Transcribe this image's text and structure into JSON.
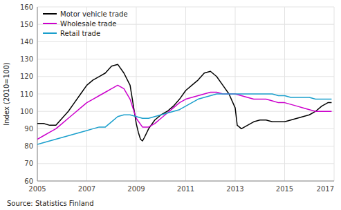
{
  "chart_data": {
    "type": "line",
    "ylabel": "Index (2010=100)",
    "source": "Source: Statistics Finland",
    "xlim": [
      2005.0,
      2017.0
    ],
    "ylim": [
      60,
      160
    ],
    "yticks": [
      60,
      70,
      80,
      90,
      100,
      110,
      120,
      130,
      140,
      150,
      160
    ],
    "xticks": [
      2005,
      2007,
      2009,
      2011,
      2013,
      2015,
      2017
    ],
    "grid": true,
    "legend": "upper-left",
    "series": [
      {
        "name": "Motor vehicle trade",
        "color": "#000000",
        "x": [
          2005.0,
          2005.25,
          2005.5,
          2005.75,
          2006.0,
          2006.25,
          2006.5,
          2006.75,
          2007.0,
          2007.25,
          2007.5,
          2007.75,
          2008.0,
          2008.25,
          2008.5,
          2008.75,
          2009.0,
          2009.083,
          2009.17,
          2009.25,
          2009.33,
          2009.5,
          2009.75,
          2010.0,
          2010.25,
          2010.5,
          2010.75,
          2011.0,
          2011.25,
          2011.5,
          2011.75,
          2012.0,
          2012.25,
          2012.5,
          2012.75,
          2013.0,
          2013.083,
          2013.17,
          2013.25,
          2013.5,
          2013.75,
          2014.0,
          2014.25,
          2014.5,
          2014.75,
          2015.0,
          2015.25,
          2015.5,
          2015.75,
          2016.0,
          2016.25,
          2016.5,
          2016.75,
          2016.9
        ],
        "values": [
          93,
          93,
          92,
          92,
          96,
          100,
          105,
          110,
          115,
          118,
          120,
          122,
          126,
          127,
          122,
          115,
          93,
          88,
          84,
          83,
          85,
          90,
          95,
          98,
          100,
          103,
          107,
          112,
          115,
          118,
          122,
          123,
          120,
          115,
          110,
          102,
          92,
          91,
          90,
          92,
          94,
          95,
          95,
          94,
          94,
          94,
          95,
          96,
          97,
          98,
          100,
          103,
          105,
          105
        ]
      },
      {
        "name": "Wholesale trade",
        "color": "#cc00cc",
        "x": [
          2005.0,
          2005.25,
          2005.5,
          2005.75,
          2006.0,
          2006.25,
          2006.5,
          2006.75,
          2007.0,
          2007.25,
          2007.5,
          2007.75,
          2008.0,
          2008.25,
          2008.5,
          2008.75,
          2009.0,
          2009.25,
          2009.5,
          2009.75,
          2010.0,
          2010.25,
          2010.5,
          2010.75,
          2011.0,
          2011.25,
          2011.5,
          2011.75,
          2012.0,
          2012.25,
          2012.5,
          2012.75,
          2013.0,
          2013.25,
          2013.5,
          2013.75,
          2014.0,
          2014.25,
          2014.5,
          2014.75,
          2015.0,
          2015.25,
          2015.5,
          2015.75,
          2016.0,
          2016.25,
          2016.5,
          2016.75,
          2016.9
        ],
        "values": [
          84,
          86,
          88,
          90,
          93,
          96,
          99,
          102,
          105,
          107,
          109,
          111,
          113,
          115,
          113,
          107,
          96,
          91,
          91,
          93,
          96,
          99,
          102,
          105,
          107,
          108,
          109,
          110,
          111,
          111,
          110,
          110,
          110,
          109,
          108,
          107,
          107,
          107,
          106,
          105,
          105,
          104,
          103,
          102,
          101,
          100,
          100,
          100,
          100
        ]
      },
      {
        "name": "Retail trade",
        "color": "#1a9fcc",
        "x": [
          2005.0,
          2005.25,
          2005.5,
          2005.75,
          2006.0,
          2006.25,
          2006.5,
          2006.75,
          2007.0,
          2007.25,
          2007.5,
          2007.75,
          2008.0,
          2008.25,
          2008.5,
          2008.75,
          2009.0,
          2009.25,
          2009.5,
          2009.75,
          2010.0,
          2010.25,
          2010.5,
          2010.75,
          2011.0,
          2011.25,
          2011.5,
          2011.75,
          2012.0,
          2012.25,
          2012.5,
          2012.75,
          2013.0,
          2013.25,
          2013.5,
          2013.75,
          2014.0,
          2014.25,
          2014.5,
          2014.75,
          2015.0,
          2015.25,
          2015.5,
          2015.75,
          2016.0,
          2016.25,
          2016.5,
          2016.75,
          2016.9
        ],
        "values": [
          81,
          82,
          83,
          84,
          85,
          86,
          87,
          88,
          89,
          90,
          91,
          91,
          94,
          97,
          98,
          98,
          97,
          96,
          96,
          97,
          98,
          99,
          100,
          101,
          103,
          105,
          107,
          108,
          109,
          110,
          110,
          110,
          110,
          110,
          110,
          110,
          110,
          110,
          110,
          109,
          109,
          108,
          108,
          108,
          108,
          107,
          107,
          107,
          107
        ]
      }
    ]
  }
}
